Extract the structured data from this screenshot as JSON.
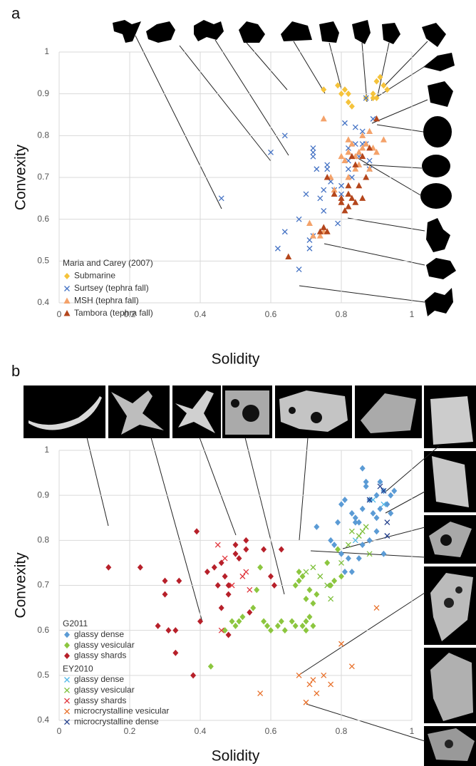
{
  "chart_data": [
    {
      "type": "scatter",
      "panel": "a",
      "xlabel": "Solidity",
      "ylabel": "Convexity",
      "xlim": [
        0,
        1
      ],
      "xticks": [
        0,
        0.2,
        0.4,
        0.6,
        0.8,
        1
      ],
      "ylim": [
        0.4,
        1
      ],
      "yticks": [
        0.4,
        0.5,
        0.6,
        0.7,
        0.8,
        0.9,
        1
      ],
      "grid": true,
      "groups": [
        {
          "title": "Maria and Carey (2007)",
          "series": [
            {
              "name": "Submarine",
              "marker": "diamond",
              "color": "#f5c33b",
              "x": [
                0.75,
                0.79,
                0.8,
                0.81,
                0.82,
                0.82,
                0.83,
                0.87,
                0.89,
                0.89,
                0.9,
                0.9,
                0.92,
                0.93,
                0.91,
                0.92
              ],
              "values": [
                0.91,
                0.92,
                0.9,
                0.91,
                0.9,
                0.88,
                0.87,
                0.89,
                0.9,
                0.89,
                0.89,
                0.93,
                0.92,
                0.91,
                0.94,
                0.92
              ]
            },
            {
              "name": "Surtsey (tephra fall)",
              "marker": "x",
              "color": "#4472c4",
              "x": [
                0.46,
                0.6,
                0.64,
                0.62,
                0.64,
                0.68,
                0.68,
                0.7,
                0.71,
                0.71,
                0.72,
                0.72,
                0.72,
                0.72,
                0.73,
                0.74,
                0.75,
                0.75,
                0.76,
                0.76,
                0.77,
                0.78,
                0.79,
                0.8,
                0.8,
                0.81,
                0.82,
                0.82,
                0.83,
                0.84,
                0.84,
                0.85,
                0.86,
                0.86,
                0.87,
                0.87,
                0.88,
                0.88,
                0.89,
                0.82
              ],
              "values": [
                0.65,
                0.76,
                0.8,
                0.53,
                0.57,
                0.6,
                0.48,
                0.66,
                0.53,
                0.55,
                0.56,
                0.76,
                0.75,
                0.77,
                0.72,
                0.65,
                0.62,
                0.67,
                0.73,
                0.72,
                0.69,
                0.67,
                0.59,
                0.68,
                0.66,
                0.83,
                0.74,
                0.77,
                0.7,
                0.78,
                0.82,
                0.75,
                0.81,
                0.78,
                0.78,
                0.89,
                0.72,
                0.74,
                0.84,
                0.72
              ]
            },
            {
              "name": "MSH (tephra fall)",
              "marker": "triangle",
              "color": "#f4a26a",
              "x": [
                0.75,
                0.77,
                0.78,
                0.8,
                0.81,
                0.82,
                0.82,
                0.83,
                0.84,
                0.85,
                0.85,
                0.86,
                0.86,
                0.87,
                0.88,
                0.88,
                0.89,
                0.9,
                0.92,
                0.74,
                0.75,
                0.72,
                0.71,
                0.82,
                0.84
              ],
              "values": [
                0.84,
                0.7,
                0.67,
                0.75,
                0.74,
                0.76,
                0.79,
                0.78,
                0.75,
                0.73,
                0.76,
                0.77,
                0.8,
                0.78,
                0.72,
                0.81,
                0.77,
                0.76,
                0.79,
                0.56,
                0.57,
                0.56,
                0.59,
                0.7,
                0.72
              ]
            },
            {
              "name": "Tambora (tephra fall)",
              "marker": "triangle",
              "color": "#b4461c",
              "x": [
                0.65,
                0.74,
                0.76,
                0.75,
                0.76,
                0.78,
                0.8,
                0.8,
                0.81,
                0.82,
                0.82,
                0.83,
                0.84,
                0.84,
                0.85,
                0.86,
                0.86,
                0.87,
                0.88,
                0.9,
                0.83,
                0.82
              ],
              "values": [
                0.51,
                0.57,
                0.57,
                0.58,
                0.7,
                0.66,
                0.64,
                0.65,
                0.62,
                0.63,
                0.66,
                0.65,
                0.64,
                0.73,
                0.68,
                0.65,
                0.75,
                0.7,
                0.77,
                0.84,
                0.75,
                0.68
              ]
            }
          ]
        }
      ]
    },
    {
      "type": "scatter",
      "panel": "b",
      "xlabel": "Solidity",
      "ylabel": "Convexity",
      "xlim": [
        0,
        1
      ],
      "xticks": [
        0,
        0.2,
        0.4,
        0.6,
        0.8,
        1
      ],
      "ylim": [
        0.4,
        1
      ],
      "yticks": [
        0.4,
        0.5,
        0.6,
        0.7,
        0.8,
        0.9,
        1
      ],
      "grid": true,
      "groups": [
        {
          "title": "G2011",
          "series": [
            {
              "name": "glassy dense",
              "marker": "diamond",
              "color": "#5b9bd5",
              "x": [
                0.73,
                0.77,
                0.78,
                0.8,
                0.81,
                0.82,
                0.83,
                0.84,
                0.85,
                0.85,
                0.86,
                0.86,
                0.87,
                0.87,
                0.88,
                0.89,
                0.9,
                0.9,
                0.91,
                0.92,
                0.92,
                0.93,
                0.94,
                0.95,
                0.94,
                0.91,
                0.88,
                0.86,
                0.79,
                0.8,
                0.81,
                0.84,
                0.9,
                0.83
              ],
              "values": [
                0.83,
                0.8,
                0.79,
                0.88,
                0.89,
                0.76,
                0.86,
                0.84,
                0.76,
                0.84,
                0.87,
                0.96,
                0.92,
                0.93,
                0.89,
                0.86,
                0.85,
                0.9,
                0.87,
                0.77,
                0.91,
                0.88,
                0.9,
                0.91,
                0.86,
                0.93,
                0.8,
                0.79,
                0.84,
                0.77,
                0.73,
                0.85,
                0.82,
                0.73
              ]
            },
            {
              "name": "glassy vesicular",
              "marker": "diamond",
              "color": "#8cc63f",
              "x": [
                0.43,
                0.47,
                0.49,
                0.5,
                0.51,
                0.52,
                0.55,
                0.56,
                0.57,
                0.58,
                0.59,
                0.6,
                0.62,
                0.63,
                0.64,
                0.66,
                0.67,
                0.67,
                0.68,
                0.68,
                0.69,
                0.69,
                0.7,
                0.7,
                0.71,
                0.72,
                0.73,
                0.76,
                0.77,
                0.78,
                0.79,
                0.8,
                0.71,
                0.7,
                0.72
              ],
              "values": [
                0.52,
                0.6,
                0.62,
                0.61,
                0.62,
                0.63,
                0.65,
                0.69,
                0.74,
                0.62,
                0.61,
                0.6,
                0.61,
                0.62,
                0.6,
                0.62,
                0.61,
                0.7,
                0.73,
                0.71,
                0.61,
                0.72,
                0.6,
                0.62,
                0.63,
                0.66,
                0.68,
                0.75,
                0.7,
                0.71,
                0.78,
                0.72,
                0.69,
                0.67,
                0.61
              ]
            },
            {
              "name": "glassy shards",
              "marker": "diamond",
              "color": "#b7202a",
              "x": [
                0.14,
                0.23,
                0.28,
                0.3,
                0.3,
                0.31,
                0.33,
                0.33,
                0.34,
                0.38,
                0.39,
                0.4,
                0.42,
                0.44,
                0.45,
                0.46,
                0.47,
                0.48,
                0.48,
                0.48,
                0.5,
                0.5,
                0.51,
                0.53,
                0.53,
                0.54,
                0.58,
                0.6,
                0.61,
                0.63,
                0.46
              ],
              "values": [
                0.74,
                0.74,
                0.61,
                0.68,
                0.71,
                0.6,
                0.6,
                0.55,
                0.71,
                0.5,
                0.82,
                0.62,
                0.73,
                0.74,
                0.7,
                0.65,
                0.72,
                0.59,
                0.7,
                0.68,
                0.79,
                0.77,
                0.76,
                0.78,
                0.8,
                0.64,
                0.78,
                0.72,
                0.7,
                0.78,
                0.75
              ]
            }
          ]
        },
        {
          "title": "EY2010",
          "series": [
            {
              "name": "glassy dense",
              "marker": "x",
              "color": "#4fb8e8",
              "x": [
                0.89,
                0.92,
                0.84
              ],
              "values": [
                0.89,
                0.88,
                0.8
              ]
            },
            {
              "name": "glassy vesicular",
              "marker": "x",
              "color": "#7dbf3a",
              "x": [
                0.7,
                0.72,
                0.74,
                0.76,
                0.77,
                0.82,
                0.85,
                0.83,
                0.86,
                0.8,
                0.88,
                0.87
              ],
              "values": [
                0.73,
                0.74,
                0.72,
                0.7,
                0.67,
                0.79,
                0.81,
                0.82,
                0.82,
                0.75,
                0.77,
                0.83
              ]
            },
            {
              "name": "glassy shards",
              "marker": "x",
              "color": "#e0333a",
              "x": [
                0.45,
                0.47,
                0.49,
                0.52,
                0.54,
                0.46,
                0.53
              ],
              "values": [
                0.79,
                0.76,
                0.7,
                0.72,
                0.69,
                0.6,
                0.73
              ]
            },
            {
              "name": "microcrystalline vesicular",
              "marker": "x",
              "color": "#e8702a",
              "x": [
                0.57,
                0.68,
                0.7,
                0.71,
                0.73,
                0.75,
                0.77,
                0.8,
                0.83,
                0.9,
                0.72
              ],
              "values": [
                0.46,
                0.5,
                0.44,
                0.48,
                0.46,
                0.5,
                0.48,
                0.57,
                0.52,
                0.65,
                0.49
              ]
            },
            {
              "name": "microcrystalline dense",
              "marker": "x",
              "color": "#233f8c",
              "x": [
                0.91,
                0.93,
                0.93,
                0.88,
                0.92
              ],
              "values": [
                0.92,
                0.84,
                0.81,
                0.89,
                0.91
              ]
            }
          ]
        }
      ]
    }
  ]
}
